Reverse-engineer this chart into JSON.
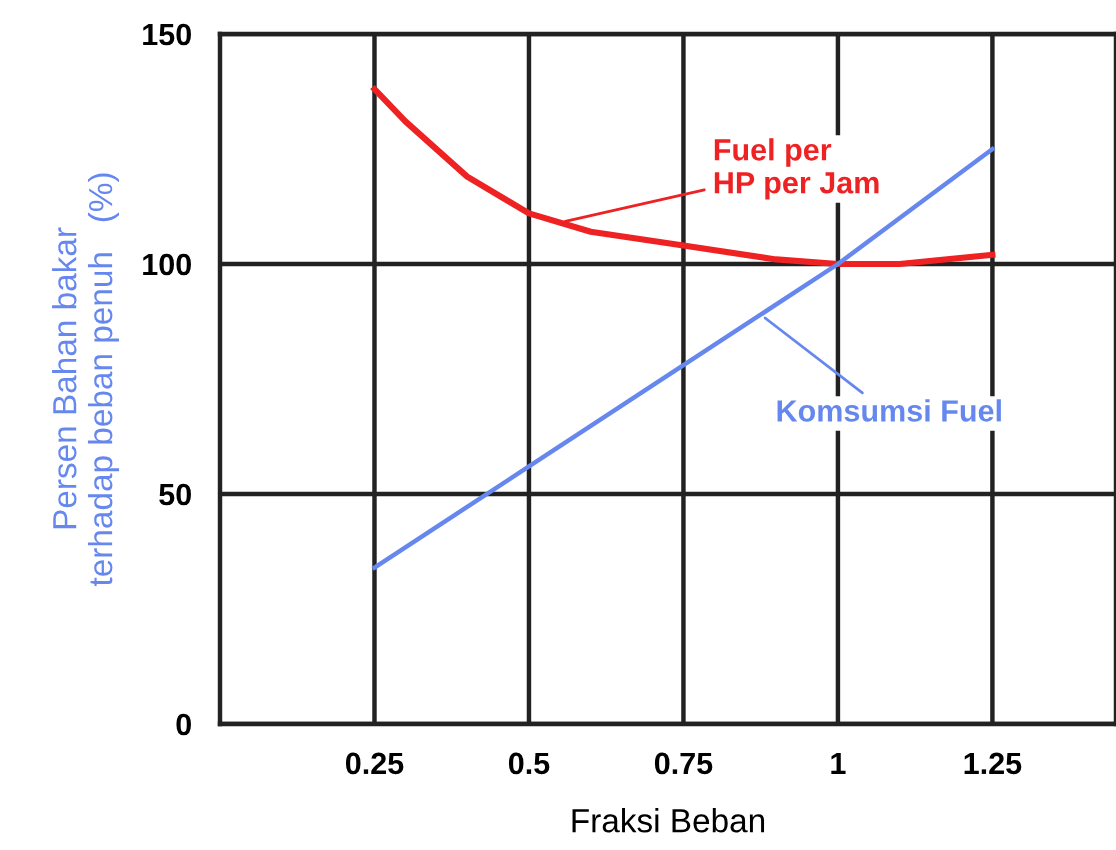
{
  "chart_data": {
    "type": "line",
    "xlabel": "Fraksi Beban",
    "ylabel": "Persen Bahan bakar\nterhadap beban penuh   (%)",
    "xlim": [
      0,
      1.45
    ],
    "ylim": [
      0,
      150
    ],
    "xticks": [
      {
        "value": 0.25,
        "label": "0.25"
      },
      {
        "value": 0.5,
        "label": "0.5"
      },
      {
        "value": 0.75,
        "label": "0.75"
      },
      {
        "value": 1,
        "label": "1"
      },
      {
        "value": 1.25,
        "label": "1.25"
      }
    ],
    "yticks": [
      0,
      50,
      100,
      150
    ],
    "grid": true,
    "marker": "none",
    "line_style": "solid",
    "series": [
      {
        "name": "Fuel per\nHP per Jam",
        "color": "#ee2222",
        "x": [
          0.25,
          0.3,
          0.4,
          0.5,
          0.6,
          0.75,
          0.9,
          1.0,
          1.1,
          1.25
        ],
        "values": [
          138,
          131,
          119,
          111,
          107,
          104,
          101,
          100,
          100,
          102
        ]
      },
      {
        "name": "Komsumsi Fuel",
        "color": "#6688ee",
        "x": [
          0.25,
          0.5,
          0.75,
          1.0,
          1.1,
          1.25
        ],
        "values": [
          34,
          56,
          78,
          100,
          110,
          125
        ]
      }
    ]
  }
}
